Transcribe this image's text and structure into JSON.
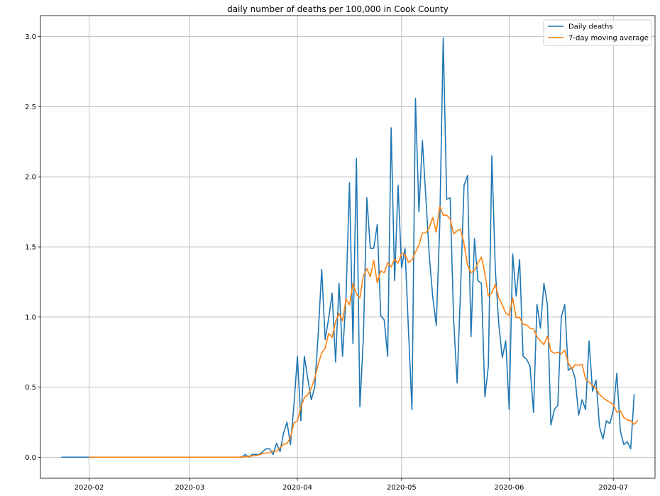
{
  "chart_data": {
    "type": "line",
    "title": "daily number of deaths per 100,000 in Cook County",
    "xlabel": "",
    "ylabel": "",
    "x_range": [
      "2020-01-18",
      "2020-07-13"
    ],
    "ylim": [
      -0.15,
      3.15
    ],
    "grid": true,
    "legend_position": "top-right",
    "x_ticks": [
      {
        "date": "2020-02-01",
        "label": "2020-02"
      },
      {
        "date": "2020-03-01",
        "label": "2020-03"
      },
      {
        "date": "2020-04-01",
        "label": "2020-04"
      },
      {
        "date": "2020-05-01",
        "label": "2020-05"
      },
      {
        "date": "2020-06-01",
        "label": "2020-06"
      },
      {
        "date": "2020-07-01",
        "label": "2020-07"
      }
    ],
    "y_ticks": [
      "0.0",
      "0.5",
      "1.0",
      "1.5",
      "2.0",
      "2.5",
      "3.0"
    ],
    "series": [
      {
        "name": "Daily deaths",
        "color": "#1f77b4",
        "start_date": "2020-01-24",
        "values": [
          0,
          0,
          0,
          0,
          0,
          0,
          0,
          0,
          0,
          0,
          0,
          0,
          0,
          0,
          0,
          0,
          0,
          0,
          0,
          0,
          0,
          0,
          0,
          0,
          0,
          0,
          0,
          0,
          0,
          0,
          0,
          0,
          0,
          0,
          0,
          0,
          0,
          0,
          0,
          0,
          0,
          0,
          0,
          0,
          0,
          0,
          0,
          0,
          0,
          0,
          0,
          0,
          0,
          0.02,
          0,
          0.02,
          0.02,
          0.02,
          0.04,
          0.06,
          0.06,
          0.02,
          0.1,
          0.04,
          0.17,
          0.25,
          0.09,
          0.37,
          0.72,
          0.26,
          0.72,
          0.56,
          0.41,
          0.5,
          0.88,
          1.34,
          0.84,
          0.99,
          1.17,
          0.68,
          1.24,
          0.72,
          1.14,
          1.96,
          0.81,
          2.13,
          0.36,
          0.85,
          1.85,
          1.49,
          1.49,
          1.66,
          1.01,
          0.98,
          0.72,
          2.35,
          1.26,
          1.94,
          1.35,
          1.49,
          0.9,
          0.34,
          2.56,
          1.75,
          2.26,
          1.85,
          1.43,
          1.14,
          0.94,
          1.66,
          2.99,
          1.84,
          1.85,
          0.98,
          0.53,
          1.2,
          1.94,
          2.01,
          0.86,
          1.56,
          1.26,
          1.24,
          0.43,
          0.65,
          2.15,
          1.34,
          0.95,
          0.71,
          0.83,
          0.34,
          1.45,
          1.15,
          1.41,
          0.72,
          0.7,
          0.65,
          0.32,
          1.09,
          0.92,
          1.24,
          1.09,
          0.23,
          0.34,
          0.37,
          1.0,
          1.09,
          0.62,
          0.64,
          0.56,
          0.3,
          0.41,
          0.34,
          0.83,
          0.47,
          0.55,
          0.22,
          0.13,
          0.26,
          0.24,
          0.34,
          0.6,
          0.19,
          0.09,
          0.11,
          0.06,
          0.45
        ]
      },
      {
        "name": "7-day moving average",
        "color": "#ff7f0e",
        "start_date": "2020-02-01",
        "values": [
          0,
          0,
          0,
          0,
          0,
          0,
          0,
          0,
          0,
          0,
          0,
          0,
          0,
          0,
          0,
          0,
          0,
          0,
          0,
          0,
          0,
          0,
          0,
          0,
          0,
          0,
          0,
          0,
          0,
          0,
          0,
          0,
          0,
          0,
          0,
          0,
          0,
          0,
          0,
          0,
          0,
          0,
          0,
          0,
          0.003,
          0.003,
          0.006,
          0.009,
          0.011,
          0.017,
          0.026,
          0.031,
          0.031,
          0.043,
          0.043,
          0.066,
          0.093,
          0.097,
          0.141,
          0.246,
          0.26,
          0.357,
          0.424,
          0.446,
          0.493,
          0.563,
          0.664,
          0.743,
          0.777,
          0.883,
          0.854,
          0.969,
          1.026,
          0.973,
          1.126,
          1.086,
          1.237,
          1.163,
          1.137,
          1.294,
          1.346,
          1.287,
          1.404,
          1.244,
          1.329,
          1.316,
          1.387,
          1.357,
          1.413,
          1.384,
          1.454,
          1.447,
          1.39,
          1.407,
          1.464,
          1.513,
          1.6,
          1.6,
          1.637,
          1.71,
          1.607,
          1.79,
          1.726,
          1.727,
          1.699,
          1.593,
          1.617,
          1.627,
          1.521,
          1.371,
          1.316,
          1.334,
          1.386,
          1.427,
          1.311,
          1.149,
          1.173,
          1.233,
          1.137,
          1.086,
          1.029,
          1.011,
          1.137,
          0.996,
          0.997,
          0.949,
          0.944,
          0.92,
          0.916,
          0.86,
          0.827,
          0.803,
          0.863,
          0.757,
          0.741,
          0.749,
          0.737,
          0.764,
          0.673,
          0.63,
          0.66,
          0.656,
          0.663,
          0.557,
          0.536,
          0.511,
          0.49,
          0.448,
          0.426,
          0.406,
          0.393,
          0.373,
          0.321,
          0.33,
          0.284,
          0.266,
          0.261,
          0.234,
          0.263
        ]
      }
    ]
  }
}
